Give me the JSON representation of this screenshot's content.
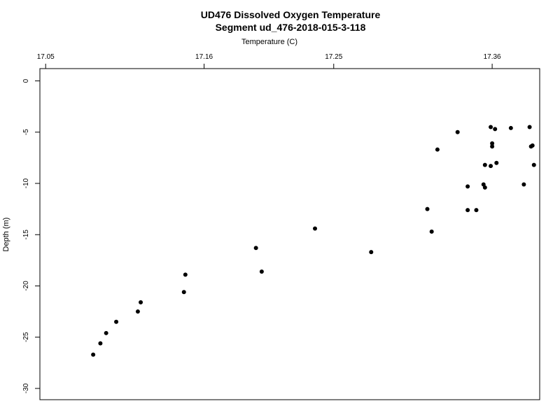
{
  "chart_data": {
    "type": "scatter",
    "title": "UD476 Dissolved Oxygen Temperature",
    "subtitle": "Segment ud_476-2018-015-3-118",
    "xlabel": "Temperature (C)",
    "ylabel": "Depth (m)",
    "x_axis_position": "top",
    "xlim": [
      17.046,
      17.393
    ],
    "ylim": [
      -31.1,
      1.2
    ],
    "x_ticks": [
      17.05,
      17.16,
      17.25,
      17.36
    ],
    "x_tick_labels": [
      "17.05",
      "17.16",
      "17.25",
      "17.36"
    ],
    "y_ticks": [
      0,
      -5,
      -10,
      -15,
      -20,
      -25,
      -30
    ],
    "y_tick_labels": [
      "0",
      "-5",
      "-10",
      "-15",
      "-20",
      "-25",
      "-30"
    ],
    "grid": false,
    "legend": "none",
    "marker_color": "#000000",
    "points": [
      {
        "x": 17.359,
        "y": -4.5
      },
      {
        "x": 17.386,
        "y": -4.5
      },
      {
        "x": 17.373,
        "y": -4.6
      },
      {
        "x": 17.362,
        "y": -4.7
      },
      {
        "x": 17.336,
        "y": -5.0
      },
      {
        "x": 17.36,
        "y": -6.1
      },
      {
        "x": 17.36,
        "y": -6.4
      },
      {
        "x": 17.388,
        "y": -6.3
      },
      {
        "x": 17.387,
        "y": -6.4
      },
      {
        "x": 17.322,
        "y": -6.7
      },
      {
        "x": 17.363,
        "y": -8.0
      },
      {
        "x": 17.355,
        "y": -8.2
      },
      {
        "x": 17.389,
        "y": -8.2
      },
      {
        "x": 17.359,
        "y": -8.3
      },
      {
        "x": 17.343,
        "y": -10.3
      },
      {
        "x": 17.354,
        "y": -10.1
      },
      {
        "x": 17.355,
        "y": -10.4
      },
      {
        "x": 17.382,
        "y": -10.1
      },
      {
        "x": 17.315,
        "y": -12.5
      },
      {
        "x": 17.343,
        "y": -12.6
      },
      {
        "x": 17.349,
        "y": -12.6
      },
      {
        "x": 17.318,
        "y": -14.7
      },
      {
        "x": 17.237,
        "y": -14.4
      },
      {
        "x": 17.196,
        "y": -16.3
      },
      {
        "x": 17.276,
        "y": -16.7
      },
      {
        "x": 17.2,
        "y": -18.6
      },
      {
        "x": 17.147,
        "y": -18.9
      },
      {
        "x": 17.146,
        "y": -20.6
      },
      {
        "x": 17.116,
        "y": -21.6
      },
      {
        "x": 17.114,
        "y": -22.5
      },
      {
        "x": 17.099,
        "y": -23.5
      },
      {
        "x": 17.092,
        "y": -24.6
      },
      {
        "x": 17.088,
        "y": -25.6
      },
      {
        "x": 17.083,
        "y": -26.7
      }
    ]
  }
}
